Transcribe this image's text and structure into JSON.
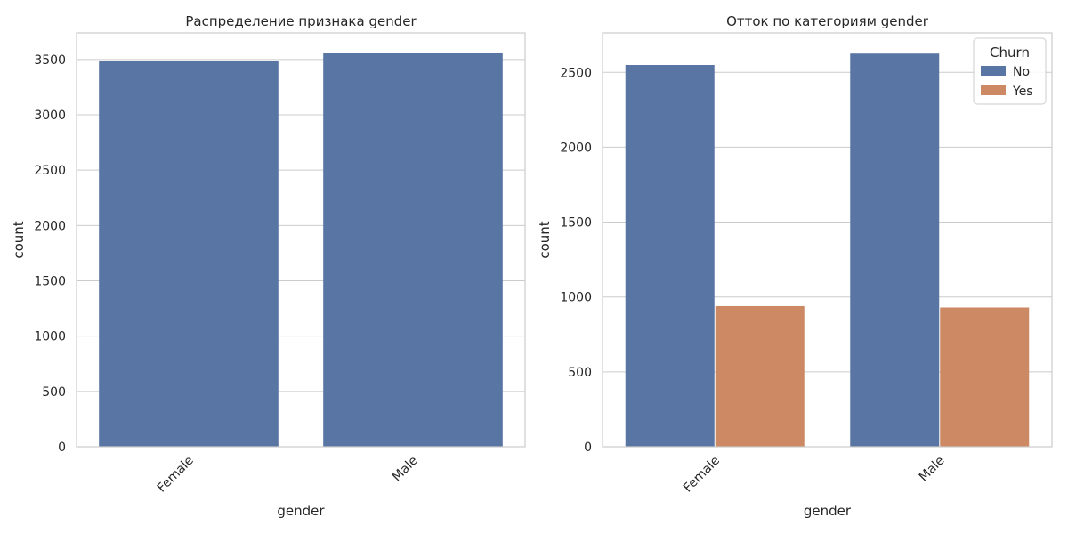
{
  "chart_data": [
    {
      "type": "bar",
      "title": "Распределение признака gender",
      "xlabel": "gender",
      "ylabel": "count",
      "categories": [
        "Female",
        "Male"
      ],
      "values": [
        3488,
        3555
      ],
      "ylim": [
        0,
        3740
      ],
      "yticks": [
        0,
        500,
        1000,
        1500,
        2000,
        2500,
        3000,
        3500
      ],
      "grid": true,
      "colors": [
        "#5875a4"
      ]
    },
    {
      "type": "bar",
      "title": "Отток по категориям gender",
      "xlabel": "gender",
      "ylabel": "count",
      "categories": [
        "Female",
        "Male"
      ],
      "series": [
        {
          "name": "No",
          "values": [
            2549,
            2625
          ],
          "color": "#5875a4"
        },
        {
          "name": "Yes",
          "values": [
            939,
            930
          ],
          "color": "#cc8963"
        }
      ],
      "legend": {
        "title": "Churn",
        "placement": "top-right"
      },
      "ylim": [
        0,
        2763
      ],
      "yticks": [
        0,
        500,
        1000,
        1500,
        2000,
        2500
      ],
      "grid": true
    }
  ]
}
